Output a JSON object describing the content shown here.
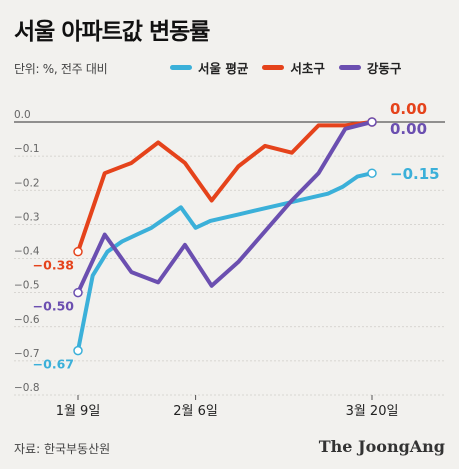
{
  "header": {
    "title": "서울 아파트값 변동률",
    "subtitle": "단위: %, 전주 대비"
  },
  "legend": [
    {
      "label": "서울 평균",
      "color": "#3bb0d9"
    },
    {
      "label": "서초구",
      "color": "#e5431b"
    },
    {
      "label": "강동구",
      "color": "#6b4fb0"
    }
  ],
  "footer": {
    "source": "자료: 한국부동산원",
    "brand": "The JoongAng"
  },
  "chart_data": {
    "type": "line",
    "y_ticks": [
      "0.0",
      "−0.1",
      "−0.2",
      "−0.3",
      "−0.4",
      "−0.5",
      "−0.6",
      "−0.7",
      "−0.8"
    ],
    "ylim": [
      -0.8,
      0.0
    ],
    "x_labels": [
      {
        "label": "1월 9일",
        "index": 0
      },
      {
        "label": "2월 6일",
        "index": 4
      },
      {
        "label": "3월 20일",
        "index": 10
      }
    ],
    "series": [
      {
        "name": "서울 평균",
        "color": "#3bb0d9",
        "values": [
          -0.67,
          -0.45,
          -0.38,
          -0.35,
          -0.33,
          -0.31,
          -0.28,
          -0.25,
          -0.31,
          -0.29,
          -0.28,
          -0.27,
          -0.26,
          -0.25,
          -0.24,
          -0.23,
          -0.22,
          -0.21,
          -0.19,
          -0.16,
          -0.15
        ],
        "end_label": "−0.15",
        "start_label": "−0.67"
      },
      {
        "name": "서초구",
        "color": "#e5431b",
        "values": [
          -0.38,
          -0.15,
          -0.12,
          -0.06,
          -0.12,
          -0.23,
          -0.13,
          -0.07,
          -0.09,
          -0.01,
          -0.01,
          0.0
        ],
        "end_label": "0.00",
        "start_label": "−0.38"
      },
      {
        "name": "강동구",
        "color": "#6b4fb0",
        "values": [
          -0.5,
          -0.33,
          -0.44,
          -0.47,
          -0.36,
          -0.48,
          -0.41,
          -0.32,
          -0.23,
          -0.15,
          -0.02,
          0.0
        ],
        "end_label": "0.00",
        "start_label": "−0.50"
      }
    ]
  }
}
